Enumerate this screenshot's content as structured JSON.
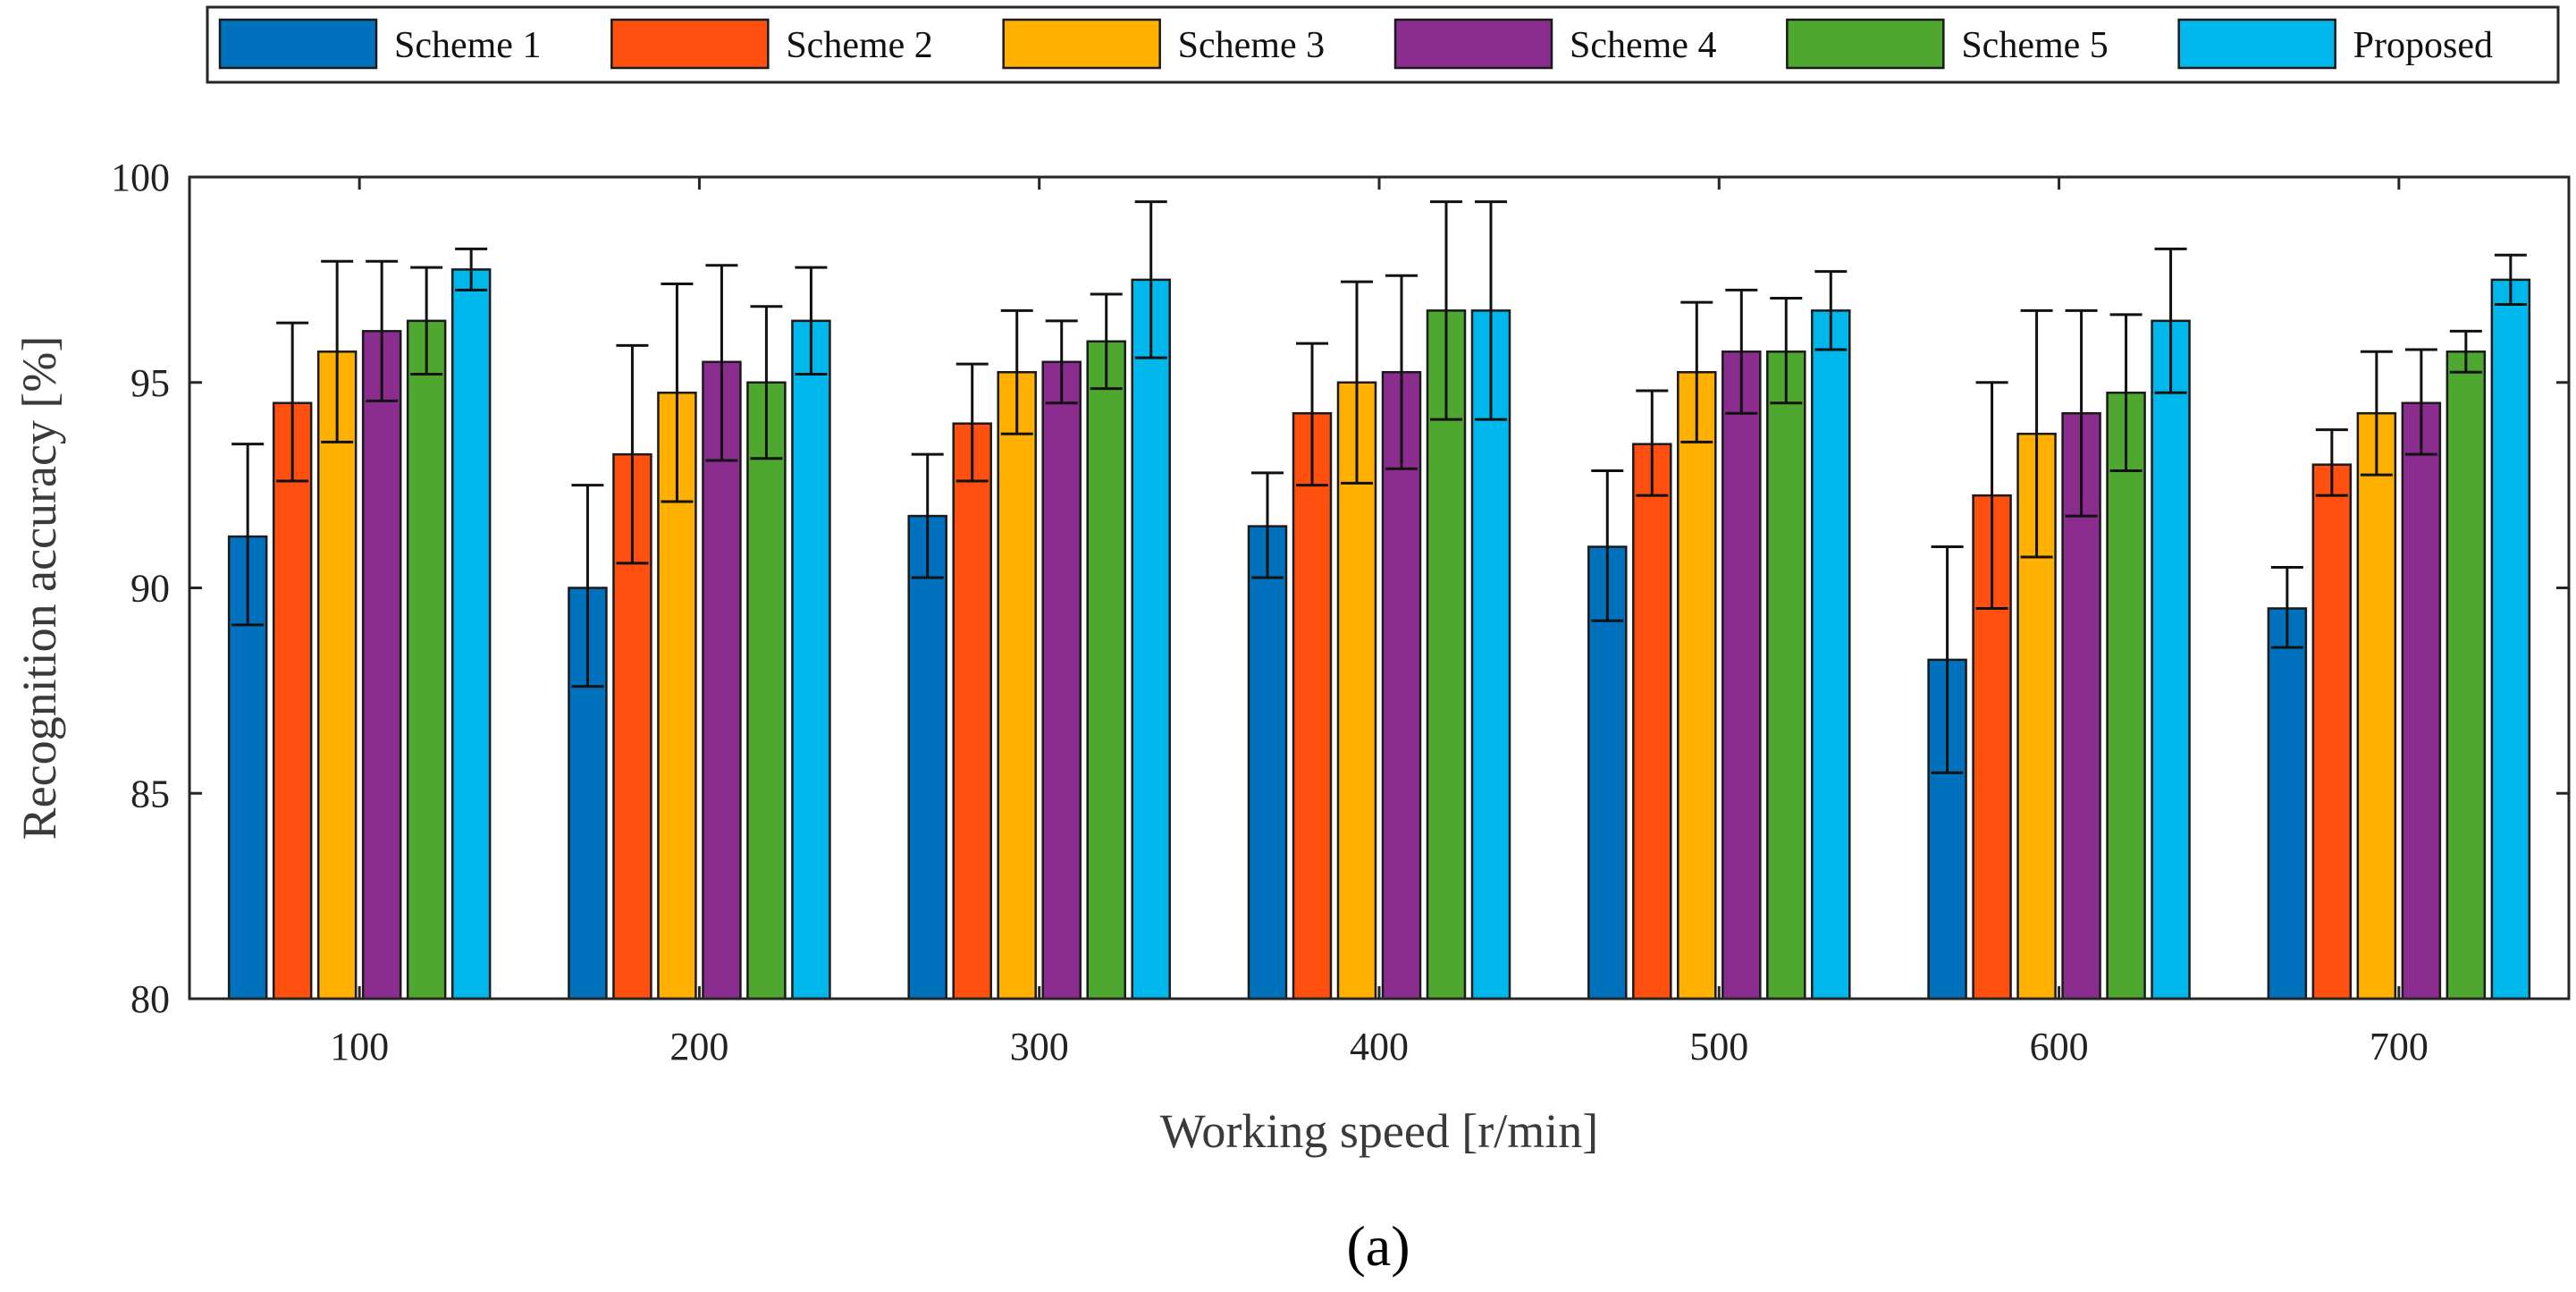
{
  "chart_data": {
    "type": "bar",
    "xlabel": "Working speed [r/min]",
    "ylabel": "Recognition accuracy [%]",
    "ylim": [
      80,
      100
    ],
    "yticks": [
      80,
      85,
      90,
      95,
      100
    ],
    "categories": [
      "100",
      "200",
      "300",
      "400",
      "500",
      "600",
      "700"
    ],
    "legend_position": "top",
    "panel_label": "(a)",
    "series": [
      {
        "name": "Scheme 1",
        "color": "#0072bd",
        "values": [
          91.25,
          90.0,
          91.75,
          91.5,
          91.0,
          88.25,
          89.5
        ],
        "err_low": [
          89.1,
          87.6,
          90.25,
          90.25,
          89.2,
          85.5,
          88.55
        ],
        "err_high": [
          93.5,
          92.5,
          93.25,
          92.8,
          92.85,
          91.0,
          90.5
        ]
      },
      {
        "name": "Scheme 2",
        "color": "#ff5010",
        "values": [
          94.5,
          93.25,
          94.0,
          94.25,
          93.5,
          92.25,
          93.0
        ],
        "err_low": [
          92.6,
          90.6,
          92.6,
          92.5,
          92.25,
          89.5,
          92.25
        ],
        "err_high": [
          96.45,
          95.9,
          95.45,
          95.95,
          94.8,
          95.0,
          93.85
        ]
      },
      {
        "name": "Scheme 3",
        "color": "#ffb000",
        "values": [
          95.75,
          94.75,
          95.25,
          95.0,
          95.25,
          93.75,
          94.25
        ],
        "err_low": [
          93.55,
          92.1,
          93.75,
          92.55,
          93.55,
          90.75,
          92.75
        ],
        "err_high": [
          97.95,
          97.4,
          96.75,
          97.45,
          96.95,
          96.75,
          95.75
        ]
      },
      {
        "name": "Scheme 4",
        "color": "#8b2c8f",
        "values": [
          96.25,
          95.5,
          95.5,
          95.25,
          95.75,
          94.25,
          94.5
        ],
        "err_low": [
          94.55,
          93.1,
          94.5,
          92.9,
          94.25,
          91.75,
          93.25
        ],
        "err_high": [
          97.95,
          97.85,
          96.5,
          97.6,
          97.25,
          96.75,
          95.8
        ]
      },
      {
        "name": "Scheme 5",
        "color": "#4ea72e",
        "values": [
          96.5,
          95.0,
          96.0,
          96.75,
          95.75,
          94.75,
          95.75
        ],
        "err_low": [
          95.2,
          93.15,
          94.85,
          94.1,
          94.5,
          92.85,
          95.25
        ],
        "err_high": [
          97.8,
          96.85,
          97.15,
          99.4,
          97.05,
          96.65,
          96.25
        ]
      },
      {
        "name": "Proposed",
        "color": "#00b7eb",
        "values": [
          97.75,
          96.5,
          97.5,
          96.75,
          96.75,
          96.5,
          97.5
        ],
        "err_low": [
          97.25,
          95.2,
          95.6,
          94.1,
          95.8,
          94.75,
          96.9
        ],
        "err_high": [
          98.25,
          97.8,
          99.4,
          99.4,
          97.7,
          98.25,
          98.1
        ]
      }
    ]
  }
}
